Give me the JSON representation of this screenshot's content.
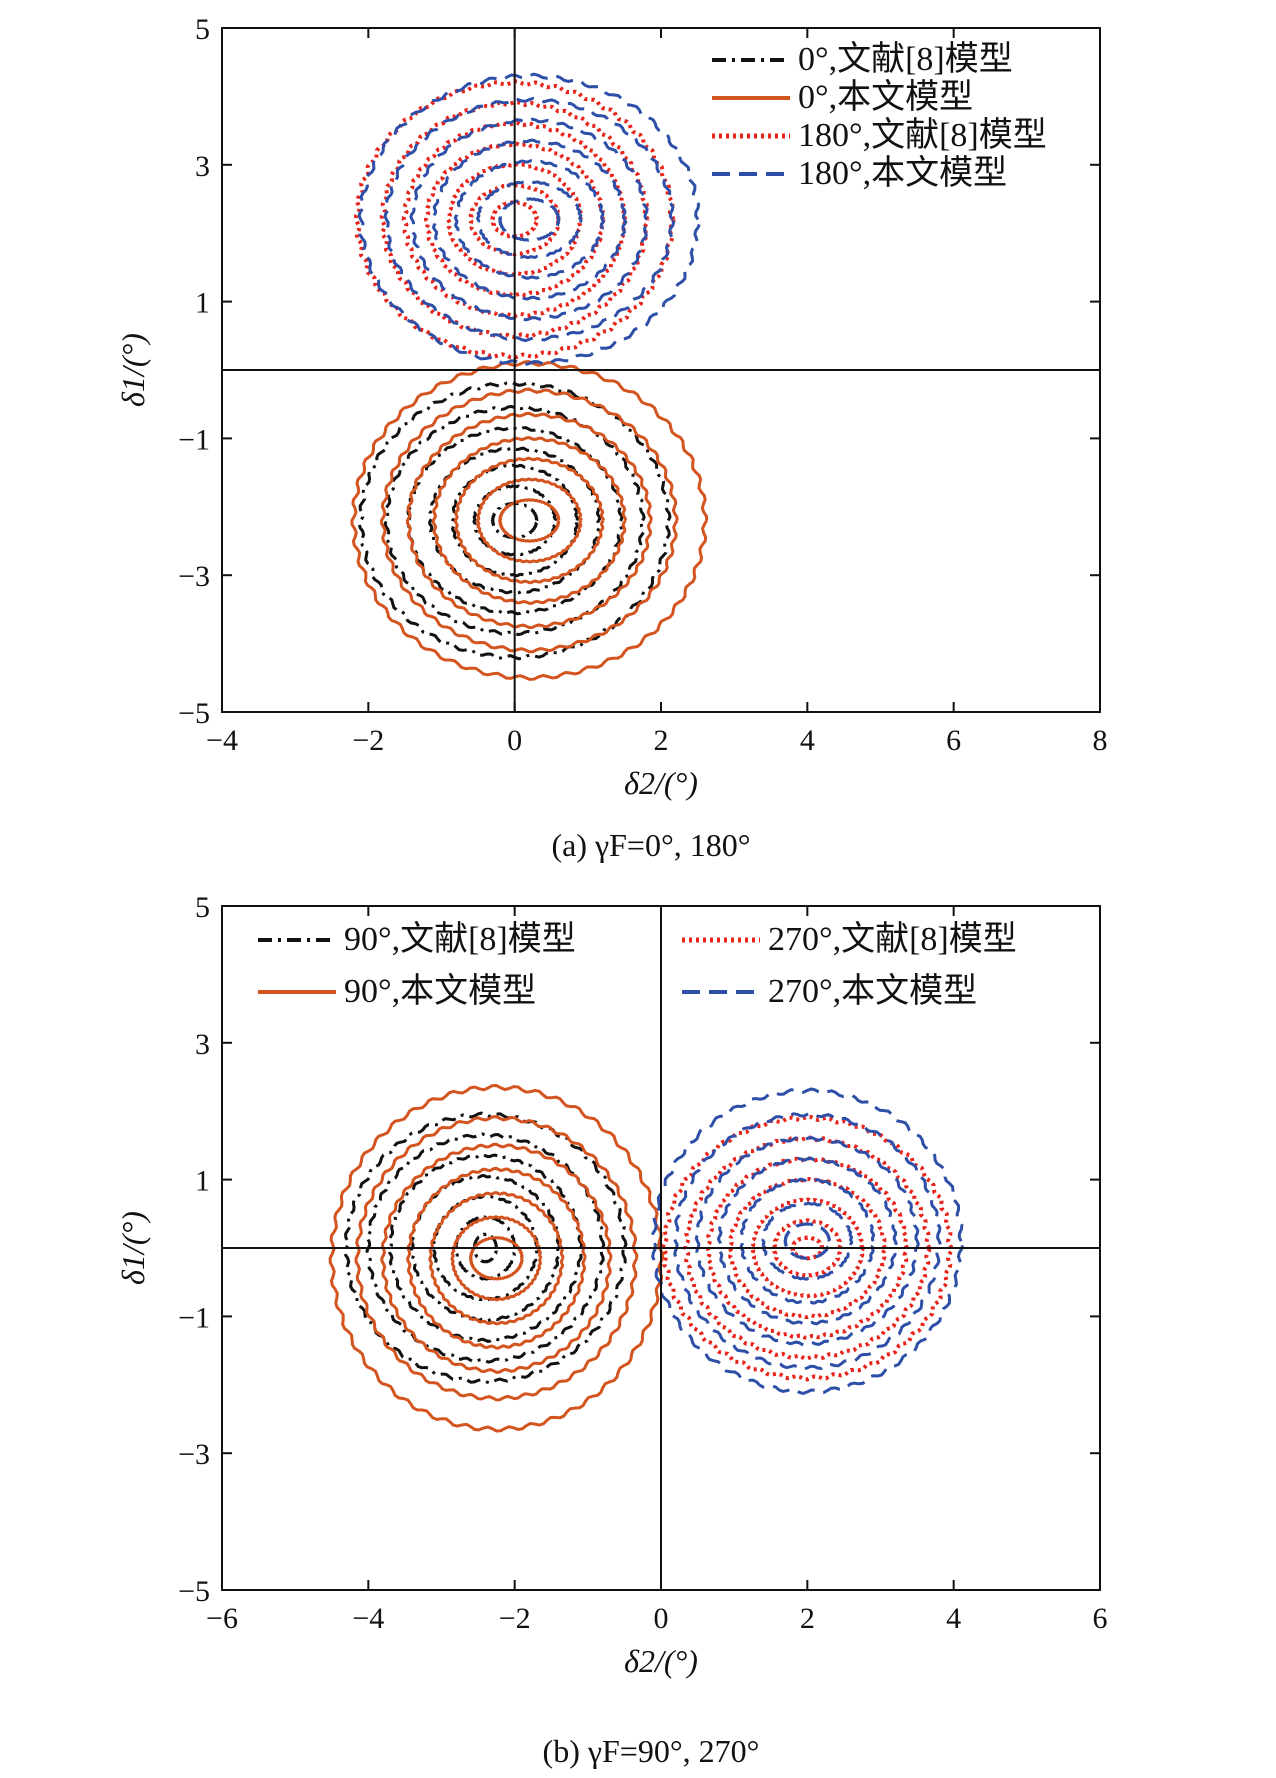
{
  "chart_data": [
    {
      "type": "line",
      "caption": "(a) γF=0°, 180°",
      "xlabel": "δ2/(°)",
      "ylabel": "δ1/(°)",
      "xlim": [
        -4,
        8
      ],
      "ylim": [
        -5,
        5
      ],
      "xticks": [
        "−4",
        "−2",
        "0",
        "2",
        "4",
        "6",
        "8"
      ],
      "yticks": [
        "5",
        "3",
        "1",
        "−1",
        "−3",
        "−5"
      ],
      "legend_position": "top-right",
      "series": [
        {
          "name": "0°,文献[8]模型",
          "color": "#111111",
          "style": "dashdot",
          "center": [
            0.0,
            -2.2
          ],
          "radius_x": [
            2.1,
            1.75,
            1.45,
            1.15,
            0.85,
            0.55,
            0.3
          ],
          "radius_y": [
            2.0,
            1.65,
            1.35,
            1.05,
            0.8,
            0.5,
            0.25
          ]
        },
        {
          "name": "0°,本文模型",
          "color": "#d4541f",
          "style": "solid",
          "center": [
            0.2,
            -2.2
          ],
          "radius_x": [
            2.4,
            2.0,
            1.65,
            1.3,
            1.0,
            0.7,
            0.4
          ],
          "radius_y": [
            2.3,
            1.9,
            1.55,
            1.2,
            0.9,
            0.6,
            0.3
          ]
        },
        {
          "name": "180°,文献[8]模型",
          "color": "#e8231a",
          "style": "dotted",
          "center": [
            0.0,
            2.2
          ],
          "radius_x": [
            2.15,
            1.8,
            1.5,
            1.2,
            0.9,
            0.6,
            0.3
          ],
          "radius_y": [
            2.0,
            1.7,
            1.4,
            1.1,
            0.8,
            0.5,
            0.25
          ]
        },
        {
          "name": "180°,本文模型",
          "color": "#2d4fa8",
          "style": "dashed",
          "center": [
            0.2,
            2.2
          ],
          "radius_x": [
            2.3,
            1.95,
            1.6,
            1.3,
            1.0,
            0.7,
            0.4
          ],
          "radius_y": [
            2.1,
            1.75,
            1.45,
            1.15,
            0.85,
            0.55,
            0.3
          ]
        }
      ]
    },
    {
      "type": "line",
      "caption": "(b) γF=90°, 270°",
      "xlabel": "δ2/(°)",
      "ylabel": "δ1/(°)",
      "xlim": [
        -6,
        6
      ],
      "ylim": [
        -5,
        5
      ],
      "xticks": [
        "−6",
        "−4",
        "−2",
        "0",
        "2",
        "4",
        "6"
      ],
      "yticks": [
        "5",
        "3",
        "1",
        "−1",
        "−3",
        "−5"
      ],
      "legend_position": "top",
      "series": [
        {
          "name": "90°,文献[8]模型",
          "color": "#111111",
          "style": "dashdot",
          "center": [
            -2.4,
            0.0
          ],
          "radius_x": [
            1.9,
            1.6,
            1.3,
            1.0,
            0.7,
            0.4,
            0.15
          ],
          "radius_y": [
            1.95,
            1.65,
            1.35,
            1.05,
            0.75,
            0.45,
            0.2
          ]
        },
        {
          "name": "90°,本文模型",
          "color": "#d4541f",
          "style": "solid",
          "center": [
            -2.25,
            -0.15
          ],
          "radius_x": [
            2.25,
            1.9,
            1.55,
            1.2,
            0.9,
            0.6,
            0.35
          ],
          "radius_y": [
            2.5,
            2.05,
            1.65,
            1.3,
            0.95,
            0.6,
            0.3
          ]
        },
        {
          "name": "270°,文献[8]模型",
          "color": "#e8231a",
          "style": "dotted",
          "center": [
            2.0,
            0.0
          ],
          "radius_x": [
            1.95,
            1.65,
            1.35,
            1.05,
            0.75,
            0.45,
            0.2
          ],
          "radius_y": [
            1.9,
            1.6,
            1.3,
            1.0,
            0.7,
            0.4,
            0.15
          ]
        },
        {
          "name": "270°,本文模型",
          "color": "#2d4fa8",
          "style": "dashed",
          "center": [
            2.0,
            0.1
          ],
          "radius_x": [
            2.1,
            1.8,
            1.5,
            1.2,
            0.9,
            0.6,
            0.3
          ],
          "radius_y": [
            2.2,
            1.85,
            1.5,
            1.2,
            0.9,
            0.55,
            0.25
          ]
        }
      ]
    }
  ]
}
